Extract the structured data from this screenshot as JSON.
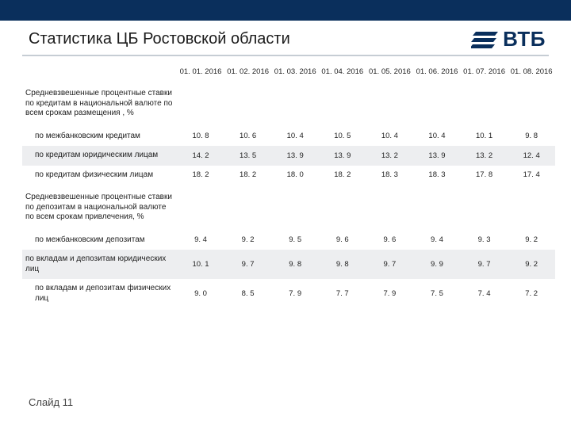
{
  "title": "Статистика ЦБ Ростовской области",
  "logo_text": "ВТБ",
  "footer": "Слайд 11",
  "colors": {
    "topbar": "#0a2f5c",
    "underline": "#c6cdd4",
    "shaded_row": "#edeef0",
    "logo": "#0a2f5c"
  },
  "table": {
    "dates": [
      "01. 01. 2016",
      "01. 02. 2016",
      "01. 03. 2016",
      "01. 04. 2016",
      "01. 05. 2016",
      "01. 06. 2016",
      "01. 07. 2016",
      "01. 08. 2016"
    ],
    "sections": [
      {
        "header": "Средневзвешенные процентные ставки по кредитам в национальной валюте по всем срокам размещения , %",
        "rows": [
          {
            "label": "по  межбанковским кредитам",
            "sub": true,
            "shaded": false,
            "values": [
              "10. 8",
              "10. 6",
              "10. 4",
              "10. 5",
              "10. 4",
              "10. 4",
              "10. 1",
              "9. 8"
            ]
          },
          {
            "label": "по кредитам юридическим лицам",
            "sub": true,
            "shaded": true,
            "values": [
              "14. 2",
              "13. 5",
              "13. 9",
              "13. 9",
              "13. 2",
              "13. 9",
              "13. 2",
              "12. 4"
            ]
          },
          {
            "label": "по кредитам физическим лицам",
            "sub": true,
            "shaded": false,
            "values": [
              "18. 2",
              "18. 2",
              "18. 0",
              "18. 2",
              "18. 3",
              "18. 3",
              "17. 8",
              "17. 4"
            ]
          }
        ]
      },
      {
        "header": "Средневзвешенные процентные ставки по депозитам в национальной валюте по всем срокам привлечения, %",
        "rows": [
          {
            "label": "по межбанковским депозитам",
            "sub": true,
            "shaded": false,
            "values": [
              "9. 4",
              "9. 2",
              "9. 5",
              "9. 6",
              "9. 6",
              "9. 4",
              "9. 3",
              "9. 2"
            ]
          },
          {
            "label": "по вкладам и депозитам юридических лиц",
            "sub": false,
            "shaded": true,
            "values": [
              "10. 1",
              "9. 7",
              "9. 8",
              "9. 8",
              "9. 7",
              "9. 9",
              "9. 7",
              "9. 2"
            ]
          },
          {
            "label": "по вкладам и депозитам физических лиц",
            "sub": true,
            "shaded": false,
            "values": [
              "9. 0",
              "8. 5",
              "7. 9",
              "7. 7",
              "7. 9",
              "7. 5",
              "7. 4",
              "7. 2"
            ]
          }
        ]
      }
    ]
  }
}
